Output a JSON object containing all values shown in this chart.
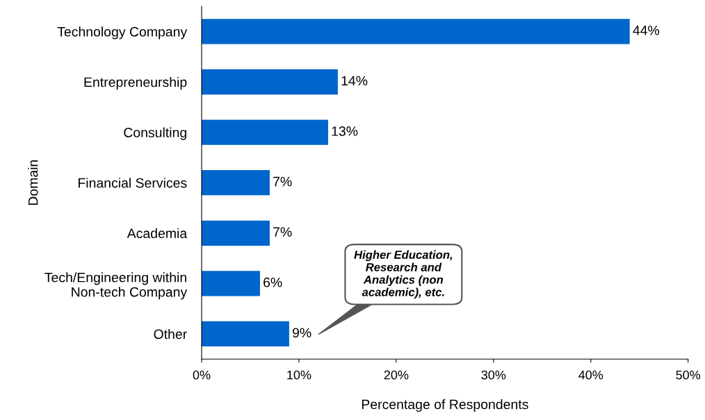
{
  "chart_data": {
    "type": "bar",
    "orientation": "horizontal",
    "ylabel": "Domain",
    "xlabel": "Percentage of Respondents",
    "categories": [
      "Technology Company",
      "Entrepreneurship",
      "Consulting",
      "Financial Services",
      "Academia",
      "Tech/Engineering within\nNon-tech Company",
      "Other"
    ],
    "values": [
      44,
      14,
      13,
      7,
      7,
      6,
      9
    ],
    "value_labels": [
      "44%",
      "14%",
      "13%",
      "7%",
      "7%",
      "6%",
      "9%"
    ],
    "color": "#0066cc",
    "xlim": [
      0,
      50
    ],
    "xticks": [
      {
        "value": 0,
        "label": "0%"
      },
      {
        "value": 10,
        "label": "10%"
      },
      {
        "value": 20,
        "label": "20%"
      },
      {
        "value": 30,
        "label": "30%"
      },
      {
        "value": 40,
        "label": "40%"
      },
      {
        "value": 50,
        "label": "50%"
      }
    ],
    "grid": false,
    "annotations": [
      "Higher Education,\nResearch and\nAnalytics (non\nacademic), etc."
    ]
  }
}
